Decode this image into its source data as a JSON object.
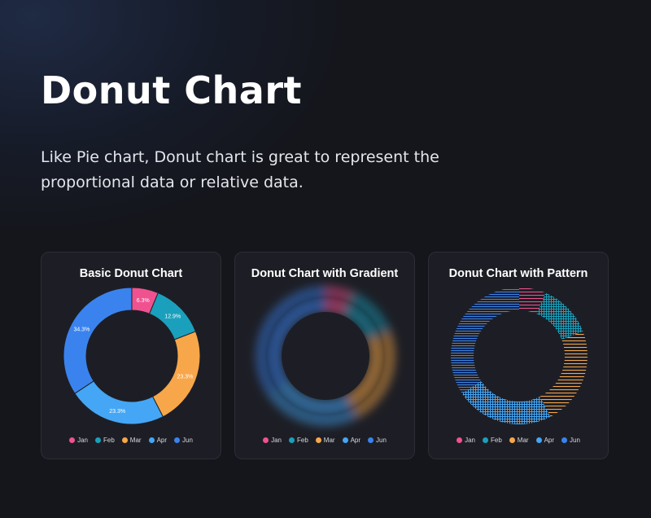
{
  "page": {
    "title": "Donut Chart",
    "description": "Like Pie chart, Donut chart is great to represent the proportional data or relative data."
  },
  "colors": {
    "Jan": "#f0528f",
    "Feb": "#1aa0bc",
    "Mar": "#f7a74a",
    "Apr": "#45a6f5",
    "Jun": "#3a83ee"
  },
  "chart_data": [
    {
      "type": "donut",
      "title": "Basic Donut Chart",
      "style": "solid",
      "categories": [
        "Jan",
        "Feb",
        "Mar",
        "Apr",
        "Jun"
      ],
      "values": [
        6.3,
        12.9,
        23.3,
        23.3,
        34.3
      ],
      "data_labels": [
        "6.3%",
        "12.9%",
        "23.3%",
        "23.3%",
        "34.3%"
      ],
      "legend_position": "bottom"
    },
    {
      "type": "donut",
      "title": "Donut Chart with Gradient",
      "style": "gradient",
      "categories": [
        "Jan",
        "Feb",
        "Mar",
        "Apr",
        "Jun"
      ],
      "values": [
        6.3,
        12.9,
        23.3,
        23.3,
        34.3
      ],
      "legend_position": "bottom"
    },
    {
      "type": "donut",
      "title": "Donut Chart with Pattern",
      "style": "pattern",
      "categories": [
        "Jan",
        "Feb",
        "Mar",
        "Apr",
        "Jun"
      ],
      "values": [
        6.3,
        12.9,
        23.3,
        23.3,
        34.3
      ],
      "legend_position": "bottom"
    }
  ]
}
